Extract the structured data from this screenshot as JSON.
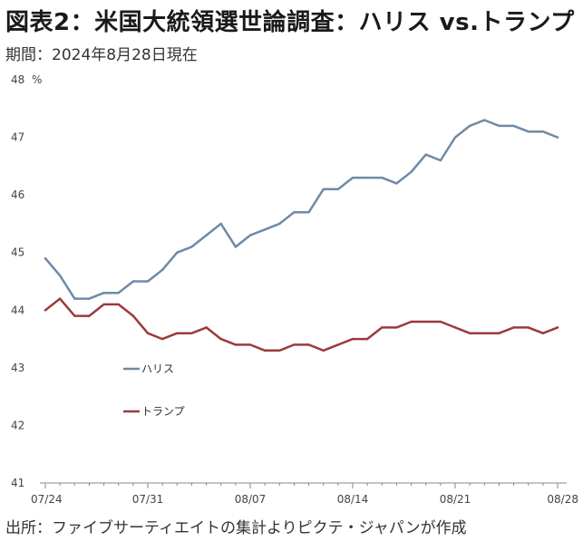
{
  "header": {
    "title": "図表2：米国大統領選世論調査：ハリス vs.トランプ",
    "subtitle": "期間：2024年8月28日現在"
  },
  "footer": {
    "source": "出所：ファイブサーティエイトの集計よりピクテ・ジャパンが作成"
  },
  "colors": {
    "harris": "#6f8aa6",
    "trump": "#9b3b3b",
    "axis": "#888888"
  },
  "chart_data": {
    "type": "line",
    "title": "図表2：米国大統領選世論調査：ハリス vs.トランプ",
    "subtitle": "期間：2024年8月28日現在",
    "ylabel": "%",
    "ylim": [
      41,
      48
    ],
    "yticks": [
      41,
      42,
      43,
      44,
      45,
      46,
      47,
      48
    ],
    "xlabels": [
      "07/24",
      "07/31",
      "08/07",
      "08/14",
      "08/21",
      "08/28"
    ],
    "x": [
      "07/24",
      "07/25",
      "07/26",
      "07/27",
      "07/28",
      "07/29",
      "07/30",
      "07/31",
      "08/01",
      "08/02",
      "08/03",
      "08/04",
      "08/05",
      "08/06",
      "08/07",
      "08/08",
      "08/09",
      "08/10",
      "08/11",
      "08/12",
      "08/13",
      "08/14",
      "08/15",
      "08/16",
      "08/17",
      "08/18",
      "08/19",
      "08/20",
      "08/21",
      "08/22",
      "08/23",
      "08/24",
      "08/25",
      "08/26",
      "08/27",
      "08/28"
    ],
    "grid": false,
    "legend_position": "center-left",
    "series": [
      {
        "name": "ハリス",
        "color": "#6f8aa6",
        "values": [
          44.9,
          44.6,
          44.2,
          44.2,
          44.3,
          44.3,
          44.5,
          44.5,
          44.7,
          45.0,
          45.1,
          45.3,
          45.5,
          45.1,
          45.3,
          45.4,
          45.5,
          45.7,
          45.7,
          46.1,
          46.1,
          46.3,
          46.3,
          46.3,
          46.2,
          46.4,
          46.7,
          46.6,
          47.0,
          47.2,
          47.3,
          47.2,
          47.2,
          47.1,
          47.1,
          47.0
        ]
      },
      {
        "name": "トランプ",
        "color": "#9b3b3b",
        "values": [
          44.0,
          44.2,
          43.9,
          43.9,
          44.1,
          44.1,
          43.9,
          43.6,
          43.5,
          43.6,
          43.6,
          43.7,
          43.5,
          43.4,
          43.4,
          43.3,
          43.3,
          43.4,
          43.4,
          43.3,
          43.4,
          43.5,
          43.5,
          43.7,
          43.7,
          43.8,
          43.8,
          43.8,
          43.7,
          43.6,
          43.6,
          43.6,
          43.7,
          43.7,
          43.6,
          43.7
        ]
      }
    ]
  }
}
